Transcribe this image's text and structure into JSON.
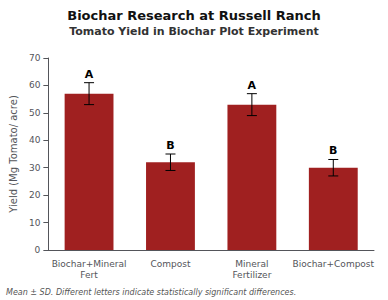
{
  "chart_data": {
    "type": "bar",
    "title": "Biochar Research at Russell Ranch",
    "subtitle": "Tomato Yield in Biochar Plot Experiment",
    "categories": [
      "Biochar+Mineral Fert",
      "Compost",
      "Mineral Fertilizer",
      "Biochar+Compost"
    ],
    "values": [
      57,
      32,
      53,
      30
    ],
    "errors": [
      4,
      3,
      4,
      3
    ],
    "letters": [
      "A",
      "B",
      "A",
      "B"
    ],
    "color": "#a02020",
    "ylabel": "Yield (Mg Tomato/ acre)",
    "ylim": [
      0,
      70
    ],
    "yticks": [
      0,
      10,
      20,
      30,
      40,
      50,
      60,
      70
    ],
    "note": "Mean ± SD. Different letters indicate statistically significant differences.",
    "grid": false
  }
}
